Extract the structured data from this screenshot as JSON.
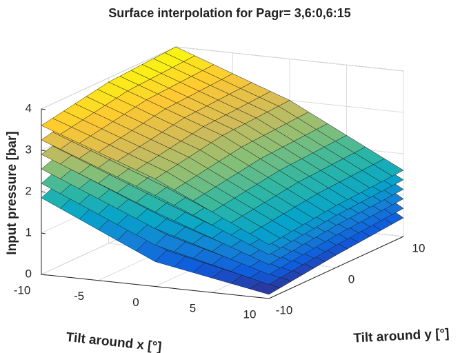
{
  "chart_data": {
    "type": "surface",
    "title": "Surface interpolation for Pagr= 3,6:0,6:15",
    "xlabel": "Tilt around x [°]",
    "ylabel": "Tilt around y [°]",
    "zlabel": "Input pressure [bar]",
    "x": [
      -10,
      0,
      10
    ],
    "y": [
      -10,
      0,
      10
    ],
    "xlim": [
      -10,
      10
    ],
    "ylim": [
      -10,
      10
    ],
    "zlim": [
      0,
      4
    ],
    "xticks": [
      -10,
      -5,
      0,
      5,
      10
    ],
    "yticks": [
      -10,
      0,
      10
    ],
    "zticks": [
      0,
      1,
      2,
      3,
      4
    ],
    "grid": true,
    "colormap": [
      "#352a87",
      "#0f5cdd",
      "#1481d6",
      "#06a4ca",
      "#2eb7a4",
      "#87bf77",
      "#d1bb59",
      "#fec832",
      "#f9fb0e"
    ],
    "series": [
      {
        "z": [
          [
            1.85,
            2.6,
            3.0
          ],
          [
            0.6,
            1.5,
            2.1
          ],
          [
            0.1,
            0.3,
            0.45
          ]
        ]
      },
      {
        "z": [
          [
            2.2,
            2.86,
            3.2
          ],
          [
            1.0,
            1.78,
            2.28
          ],
          [
            0.34,
            0.54,
            0.68
          ]
        ]
      },
      {
        "z": [
          [
            2.55,
            3.12,
            3.4
          ],
          [
            1.4,
            2.06,
            2.46
          ],
          [
            0.58,
            0.78,
            0.91
          ]
        ]
      },
      {
        "z": [
          [
            2.9,
            3.38,
            3.6
          ],
          [
            1.8,
            2.34,
            2.64
          ],
          [
            0.82,
            1.02,
            1.14
          ]
        ]
      },
      {
        "z": [
          [
            3.25,
            3.64,
            3.8
          ],
          [
            2.2,
            2.62,
            2.82
          ],
          [
            1.06,
            1.26,
            1.37
          ]
        ]
      },
      {
        "z": [
          [
            3.6,
            3.9,
            4.0
          ],
          [
            2.6,
            2.9,
            3.0
          ],
          [
            1.3,
            1.5,
            1.6
          ]
        ]
      }
    ]
  }
}
